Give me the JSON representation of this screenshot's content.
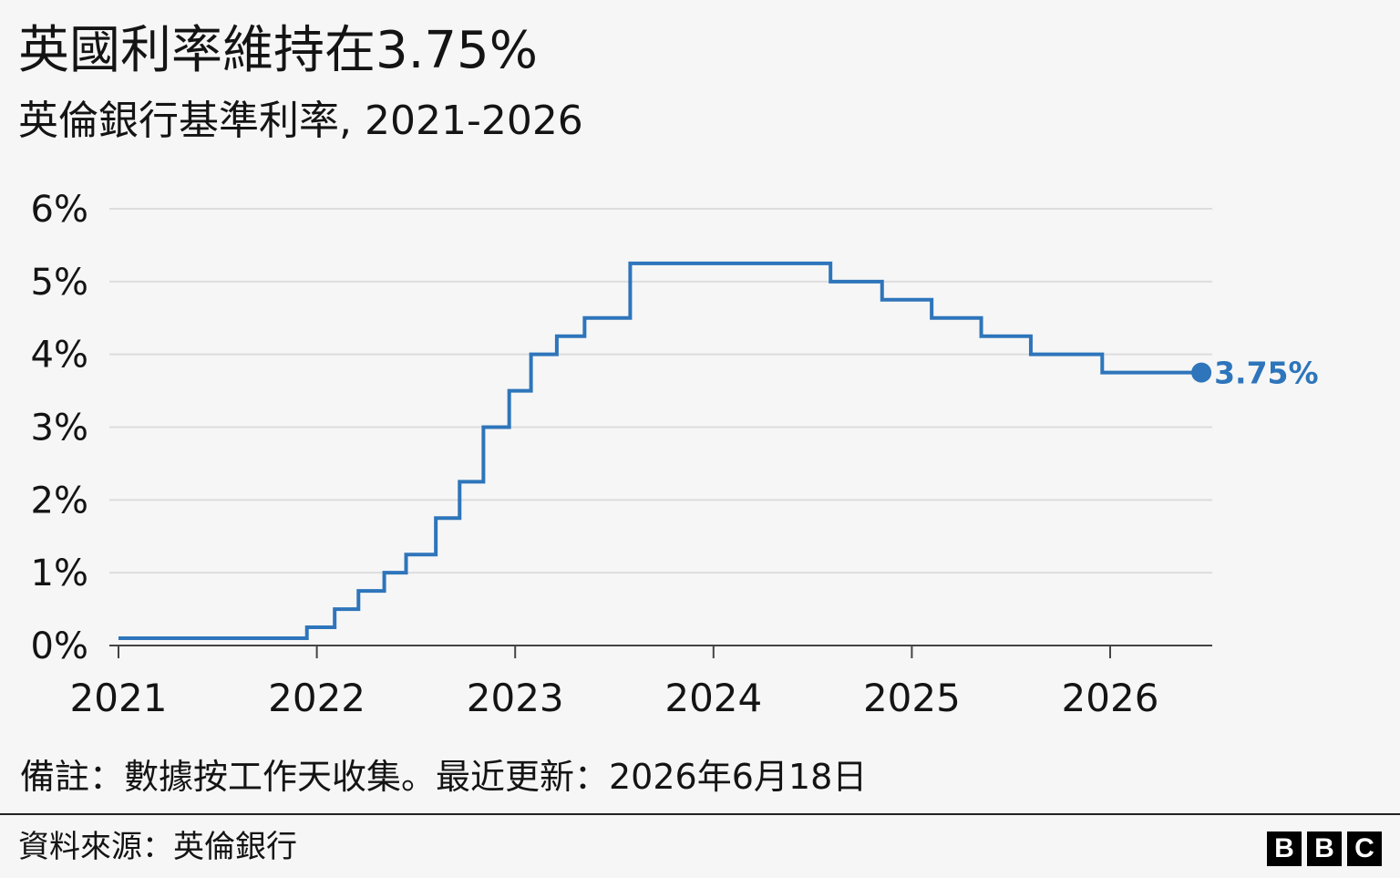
{
  "header": {
    "title": "英國利率維持在3.75%",
    "subtitle": "英倫銀行基準利率, 2021-2026"
  },
  "footer": {
    "note": "備註：數據按工作天收集。最近更新：2026年6月18日",
    "source": "資料來源：英倫銀行",
    "logo_letters": [
      "B",
      "B",
      "C"
    ]
  },
  "colors": {
    "line": "#2e75bb",
    "grid": "#dddddd",
    "axis": "#444444",
    "background": "#f6f6f6"
  },
  "chart_data": {
    "type": "line",
    "step": true,
    "title": "英國利率維持在3.75%",
    "subtitle": "英倫銀行基準利率, 2021-2026",
    "xlabel": "",
    "ylabel": "",
    "x_ticks": [
      "2021",
      "2022",
      "2023",
      "2024",
      "2025",
      "2026"
    ],
    "y_ticks": [
      "0%",
      "1%",
      "2%",
      "3%",
      "4%",
      "5%",
      "6%"
    ],
    "ylim": [
      0,
      6
    ],
    "xlim": [
      2021.0,
      2026.6
    ],
    "grid": true,
    "end_label": "3.75%",
    "series": [
      {
        "x": [
          2021.0,
          2021.95,
          2022.09,
          2022.21,
          2022.34,
          2022.45,
          2022.6,
          2022.72,
          2022.84,
          2022.97,
          2023.08,
          2023.21,
          2023.35,
          2023.58,
          2024.59,
          2024.85,
          2025.1,
          2025.35,
          2025.6,
          2025.96,
          2026.46
        ],
        "y": [
          0.1,
          0.25,
          0.5,
          0.75,
          1.0,
          1.25,
          1.75,
          2.25,
          3.0,
          3.5,
          4.0,
          4.25,
          4.5,
          5.25,
          5.0,
          4.75,
          4.5,
          4.25,
          4.0,
          3.75,
          3.75
        ]
      }
    ]
  }
}
